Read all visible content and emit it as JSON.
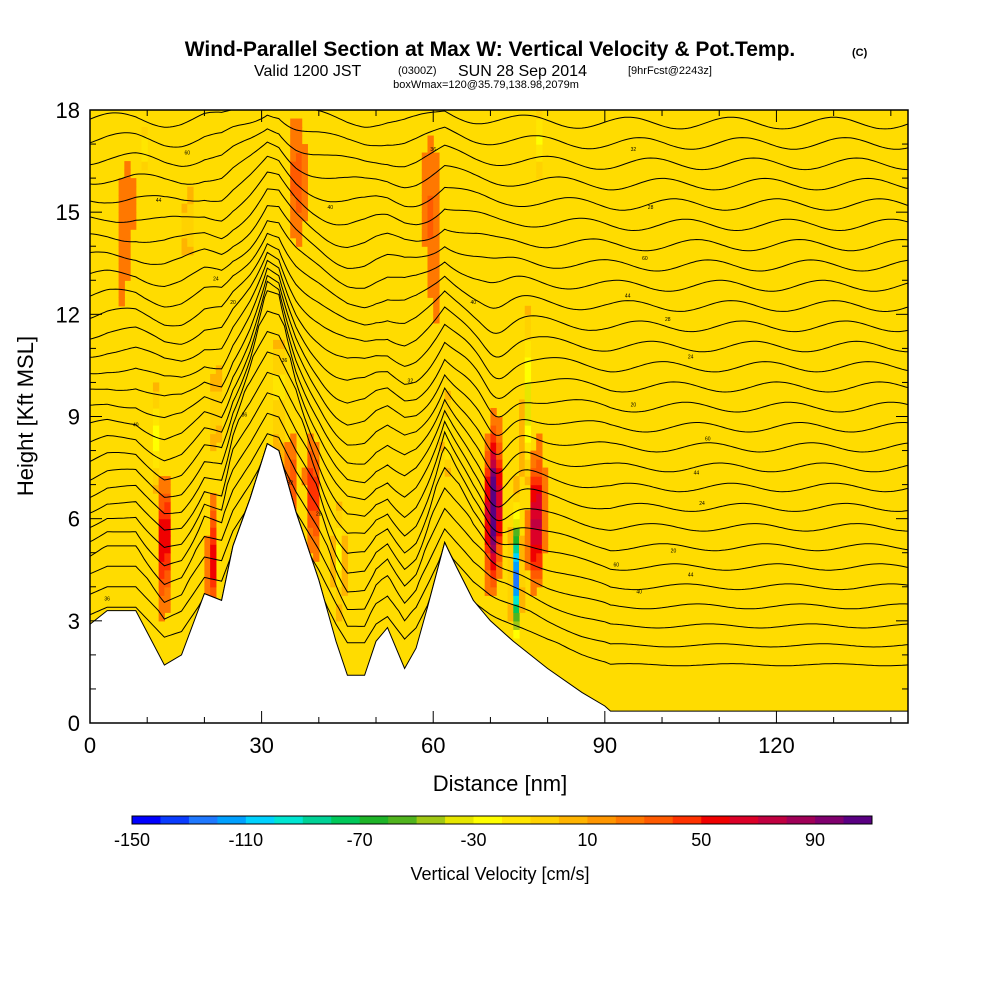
{
  "chart_data": {
    "type": "heatmap",
    "title": "Wind-Parallel Section at Max W: Vertical Velocity & Pot.Temp.",
    "title_mark": "(C)",
    "subtitle_valid": "Valid 1200 JST",
    "subtitle_utc": "(0300Z)",
    "subtitle_date": "SUN 28 Sep 2014",
    "subtitle_fcst": "[9hrFcst@2243z]",
    "subtitle2": "boxWmax=120@35.79,138.98,2079m",
    "xlabel": "Distance [nm]",
    "ylabel": "Height [Kft MSL]",
    "xlim": [
      0,
      143
    ],
    "ylim": [
      0,
      18
    ],
    "xticks": [
      0,
      30,
      60,
      90,
      120
    ],
    "yticks": [
      0,
      3,
      6,
      9,
      12,
      15,
      18
    ],
    "colorbar": {
      "label": "Vertical Velocity [cm/s]",
      "min": -150,
      "max": 110,
      "step": 10,
      "tick_values": [
        -150,
        -110,
        -70,
        -30,
        10,
        50,
        90
      ],
      "colors": [
        "#0000ff",
        "#0a3cff",
        "#1f78ff",
        "#00a0ff",
        "#00d2ff",
        "#00e6d2",
        "#00d296",
        "#00c85a",
        "#1eb428",
        "#50b41e",
        "#a0c814",
        "#e6e600",
        "#ffff00",
        "#ffe600",
        "#ffd200",
        "#ffb400",
        "#ff9600",
        "#ff7800",
        "#ff5a00",
        "#ff3200",
        "#f00000",
        "#dc0028",
        "#c00040",
        "#a00058",
        "#80006e",
        "#5a0082"
      ]
    },
    "terrain_kft": [
      {
        "x": 0,
        "h": 2.9
      },
      {
        "x": 3,
        "h": 3.3
      },
      {
        "x": 8,
        "h": 3.3
      },
      {
        "x": 13,
        "h": 1.7
      },
      {
        "x": 16,
        "h": 2.0
      },
      {
        "x": 20,
        "h": 3.8
      },
      {
        "x": 23,
        "h": 3.6
      },
      {
        "x": 25,
        "h": 5.2
      },
      {
        "x": 28,
        "h": 6.6
      },
      {
        "x": 31,
        "h": 8.2
      },
      {
        "x": 33,
        "h": 8.0
      },
      {
        "x": 36,
        "h": 6.2
      },
      {
        "x": 40,
        "h": 4.2
      },
      {
        "x": 43,
        "h": 2.4
      },
      {
        "x": 45,
        "h": 1.4
      },
      {
        "x": 48,
        "h": 1.4
      },
      {
        "x": 50,
        "h": 2.4
      },
      {
        "x": 52,
        "h": 2.8
      },
      {
        "x": 55,
        "h": 1.6
      },
      {
        "x": 57,
        "h": 2.2
      },
      {
        "x": 59,
        "h": 3.4
      },
      {
        "x": 62,
        "h": 5.3
      },
      {
        "x": 64,
        "h": 4.6
      },
      {
        "x": 67,
        "h": 3.6
      },
      {
        "x": 70,
        "h": 3.0
      },
      {
        "x": 74,
        "h": 2.4
      },
      {
        "x": 80,
        "h": 1.6
      },
      {
        "x": 86,
        "h": 0.9
      },
      {
        "x": 90,
        "h": 0.5
      },
      {
        "x": 91,
        "h": 0.35
      },
      {
        "x": 143,
        "h": 0.35
      }
    ],
    "w_features": [
      {
        "x": 70.5,
        "y": 6.3,
        "w": 115,
        "sx": 1.1,
        "sy": 1.7
      },
      {
        "x": 78.0,
        "y": 5.8,
        "w": 70,
        "sx": 1.2,
        "sy": 1.6
      },
      {
        "x": 74.5,
        "y": 4.3,
        "w": -140,
        "sx": 0.7,
        "sy": 1.5
      },
      {
        "x": 76.5,
        "y": 9.5,
        "w": -45,
        "sx": 0.7,
        "sy": 2.2
      },
      {
        "x": 13.0,
        "y": 5.5,
        "w": 55,
        "sx": 0.9,
        "sy": 1.6
      },
      {
        "x": 21.5,
        "y": 4.8,
        "w": 45,
        "sx": 0.8,
        "sy": 1.5
      },
      {
        "x": 39.0,
        "y": 6.8,
        "w": 45,
        "sx": 1.0,
        "sy": 1.4
      },
      {
        "x": 35.0,
        "y": 7.0,
        "w": 35,
        "sx": 0.7,
        "sy": 1.4
      },
      {
        "x": 33.0,
        "y": 10.0,
        "w": -35,
        "sx": 0.8,
        "sy": 1.5
      },
      {
        "x": 11.5,
        "y": 8.5,
        "w": -30,
        "sx": 0.6,
        "sy": 1.4
      },
      {
        "x": 22.0,
        "y": 9.0,
        "w": -30,
        "sx": 0.7,
        "sy": 1.2
      },
      {
        "x": 17.0,
        "y": 14.7,
        "w": -35,
        "sx": 0.6,
        "sy": 1.0
      },
      {
        "x": 9.5,
        "y": 16.8,
        "w": -35,
        "sx": 0.5,
        "sy": 0.6
      },
      {
        "x": 78.5,
        "y": 17.0,
        "w": -35,
        "sx": 0.6,
        "sy": 1.1
      },
      {
        "x": 43.5,
        "y": 5.0,
        "w": -30,
        "sx": 0.8,
        "sy": 1.3
      },
      {
        "x": 6.0,
        "y": 15.0,
        "w": 20,
        "sx": 1.5,
        "sy": 2.0
      },
      {
        "x": 36.0,
        "y": 16.0,
        "w": 18,
        "sx": 1.5,
        "sy": 2.0
      },
      {
        "x": 60.0,
        "y": 15.0,
        "w": 22,
        "sx": 1.6,
        "sy": 2.4
      },
      {
        "x": 62.5,
        "y": 8.5,
        "w": -30,
        "sx": 0.6,
        "sy": 1.0
      }
    ],
    "isentrope_labels": [
      "60",
      "44",
      "40",
      "36",
      "32",
      "28",
      "24",
      "20"
    ]
  }
}
